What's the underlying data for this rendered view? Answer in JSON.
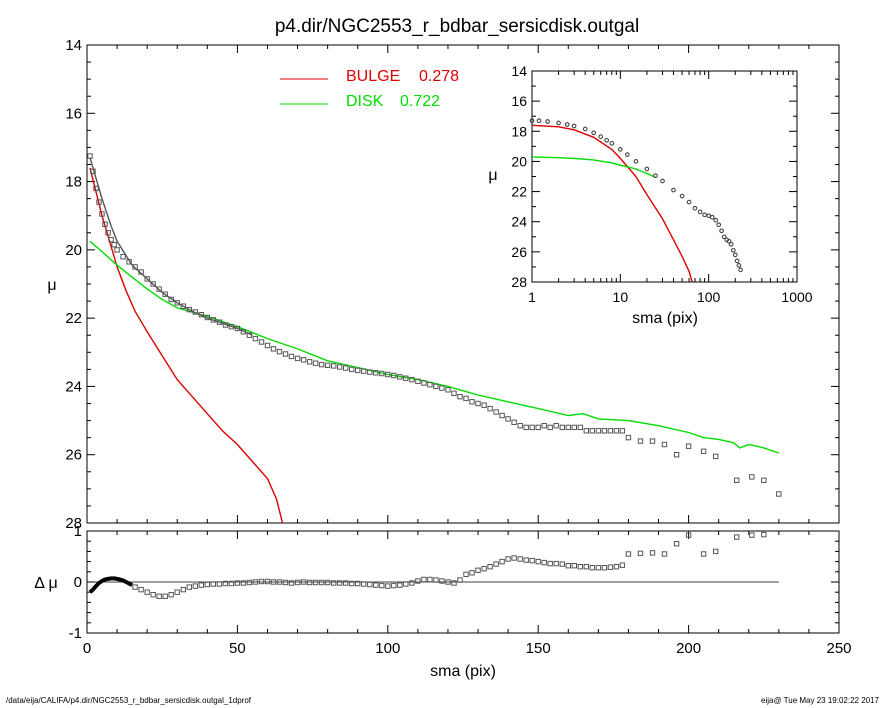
{
  "footer": {
    "left": "/data/eija/CALIFA/p4.dir/NGC2553_r_bdbar_sersicdisk.outgal_1dprof",
    "right": "eija@  Tue May 23 19:02:22 2017"
  },
  "colors": {
    "bulge": "#dd0000",
    "disk": "#00dd00",
    "data": "#555555"
  },
  "chart_data": [
    {
      "id": "main-profile",
      "type": "scatter",
      "title": "p4.dir/NGC2553_r_bdbar_sersicdisk.outgal",
      "xlabel": "",
      "ylabel": "μ",
      "xlim": [
        0,
        250
      ],
      "ylim": [
        28,
        14
      ],
      "y_inverted": true,
      "xticks": [
        0,
        50,
        100,
        150,
        200,
        250
      ],
      "yticks": [
        14,
        16,
        18,
        20,
        22,
        24,
        26,
        28
      ],
      "legend": {
        "placement": "top-center",
        "entries": [
          {
            "name": "BULGE",
            "value": "0.278",
            "color": "#dd0000"
          },
          {
            "name": "DISK",
            "value": "0.722",
            "color": "#00dd00"
          }
        ]
      },
      "series": [
        {
          "name": "BULGE",
          "style": "line",
          "color": "#dd0000",
          "x": [
            1,
            3,
            5,
            8,
            10,
            13,
            16,
            20,
            25,
            30,
            35,
            40,
            45,
            50,
            55,
            60,
            63,
            65
          ],
          "y": [
            17.6,
            18.3,
            19.0,
            19.9,
            20.5,
            21.2,
            21.8,
            22.4,
            23.1,
            23.8,
            24.3,
            24.8,
            25.3,
            25.7,
            26.2,
            26.7,
            27.3,
            28.0
          ]
        },
        {
          "name": "DISK",
          "style": "line",
          "color": "#00dd00",
          "x": [
            1,
            5,
            10,
            15,
            20,
            25,
            30,
            40,
            50,
            60,
            70,
            80,
            90,
            100,
            110,
            120,
            130,
            140,
            150,
            155,
            160,
            165,
            170,
            180,
            190,
            200,
            205,
            210,
            215,
            217,
            220,
            225,
            230
          ],
          "y": [
            19.75,
            20.05,
            20.45,
            20.8,
            21.15,
            21.45,
            21.7,
            21.95,
            22.25,
            22.6,
            22.9,
            23.25,
            23.45,
            23.65,
            23.8,
            24.0,
            24.25,
            24.45,
            24.65,
            24.75,
            24.85,
            24.8,
            24.95,
            25.0,
            25.15,
            25.35,
            25.5,
            25.55,
            25.65,
            25.8,
            25.7,
            25.8,
            25.95
          ]
        },
        {
          "name": "total model",
          "style": "line",
          "color": "#555555",
          "x": [
            1,
            3,
            5,
            8,
            10,
            15,
            20,
            25,
            30,
            35,
            40,
            45,
            50,
            55
          ],
          "y": [
            17.3,
            17.9,
            18.5,
            19.3,
            19.75,
            20.45,
            20.85,
            21.25,
            21.55,
            21.8,
            22.0,
            22.15,
            22.3,
            22.5
          ]
        },
        {
          "name": "data",
          "style": "points",
          "color": "#555555",
          "x": [
            1,
            2,
            3,
            4,
            5,
            6,
            7,
            8,
            9,
            10,
            12,
            14,
            16,
            18,
            20,
            22,
            24,
            26,
            28,
            30,
            32,
            34,
            36,
            38,
            40,
            42,
            44,
            46,
            48,
            50,
            52,
            54,
            56,
            58,
            60,
            62,
            64,
            66,
            68,
            70,
            72,
            74,
            76,
            78,
            80,
            82,
            84,
            86,
            88,
            90,
            92,
            94,
            96,
            98,
            100,
            102,
            104,
            106,
            108,
            110,
            112,
            114,
            116,
            118,
            120,
            122,
            124,
            126,
            128,
            130,
            132,
            134,
            136,
            138,
            140,
            142,
            144,
            146,
            148,
            150,
            152,
            154,
            156,
            158,
            160,
            162,
            164,
            166,
            168,
            170,
            172,
            174,
            176,
            178,
            180,
            184,
            188,
            192,
            196,
            200,
            205,
            209,
            216,
            221,
            225,
            230
          ],
          "y": [
            17.25,
            17.7,
            18.2,
            18.6,
            18.95,
            19.25,
            19.5,
            19.7,
            19.85,
            20.0,
            20.2,
            20.35,
            20.5,
            20.65,
            20.85,
            21.0,
            21.15,
            21.3,
            21.45,
            21.55,
            21.65,
            21.75,
            21.82,
            21.9,
            21.98,
            22.05,
            22.12,
            22.2,
            22.25,
            22.3,
            22.4,
            22.5,
            22.6,
            22.7,
            22.8,
            22.9,
            22.98,
            23.05,
            23.12,
            23.18,
            23.22,
            23.28,
            23.32,
            23.36,
            23.38,
            23.4,
            23.43,
            23.46,
            23.5,
            23.53,
            23.55,
            23.58,
            23.6,
            23.62,
            23.65,
            23.68,
            23.72,
            23.76,
            23.8,
            23.85,
            23.9,
            23.95,
            24.0,
            24.05,
            24.1,
            24.2,
            24.3,
            24.35,
            24.45,
            24.5,
            24.55,
            24.65,
            24.75,
            24.85,
            24.95,
            25.05,
            25.15,
            25.2,
            25.2,
            25.2,
            25.15,
            25.2,
            25.15,
            25.2,
            25.2,
            25.2,
            25.2,
            25.3,
            25.3,
            25.3,
            25.3,
            25.3,
            25.3,
            25.3,
            25.5,
            25.6,
            25.6,
            25.7,
            26.0,
            25.75,
            25.9,
            26.05,
            26.75,
            26.65,
            26.75,
            27.15
          ]
        }
      ]
    },
    {
      "id": "residual",
      "type": "scatter",
      "xlabel": "sma (pix)",
      "ylabel": "Δ μ",
      "xlim": [
        0,
        250
      ],
      "ylim": [
        -1,
        1
      ],
      "xticks": [
        0,
        50,
        100,
        150,
        200,
        250
      ],
      "yticks": [
        -1,
        0,
        1
      ],
      "zero_line": true,
      "series": [
        {
          "name": "residual curve",
          "style": "thick-line",
          "color": "#000000",
          "x": [
            1,
            2,
            3,
            4,
            5,
            6,
            7,
            8,
            9,
            10,
            11,
            12,
            13,
            14,
            15
          ],
          "y": [
            -0.2,
            -0.15,
            -0.08,
            -0.02,
            0.02,
            0.05,
            0.06,
            0.07,
            0.07,
            0.06,
            0.05,
            0.03,
            0.0,
            -0.03,
            -0.06
          ]
        },
        {
          "name": "residuals",
          "style": "points",
          "color": "#555555",
          "x": [
            16,
            18,
            20,
            22,
            24,
            26,
            28,
            30,
            32,
            34,
            36,
            38,
            40,
            42,
            44,
            46,
            48,
            50,
            52,
            54,
            56,
            58,
            60,
            62,
            64,
            66,
            68,
            70,
            72,
            74,
            76,
            78,
            80,
            82,
            84,
            86,
            88,
            90,
            92,
            94,
            96,
            98,
            100,
            102,
            104,
            106,
            108,
            110,
            112,
            114,
            116,
            118,
            120,
            122,
            124,
            126,
            128,
            130,
            132,
            134,
            136,
            138,
            140,
            142,
            144,
            146,
            148,
            150,
            152,
            154,
            156,
            158,
            160,
            162,
            164,
            166,
            168,
            170,
            172,
            174,
            176,
            178,
            180,
            184,
            188,
            192,
            196,
            200,
            205,
            209,
            216,
            221,
            225
          ],
          "y": [
            -0.1,
            -0.15,
            -0.2,
            -0.25,
            -0.28,
            -0.28,
            -0.25,
            -0.2,
            -0.15,
            -0.1,
            -0.08,
            -0.06,
            -0.05,
            -0.04,
            -0.04,
            -0.03,
            -0.03,
            -0.02,
            -0.02,
            -0.01,
            0.0,
            0.01,
            0.01,
            0.0,
            0.0,
            -0.01,
            -0.02,
            -0.01,
            0.0,
            -0.01,
            -0.01,
            -0.01,
            -0.01,
            -0.02,
            -0.02,
            -0.02,
            -0.03,
            -0.03,
            -0.04,
            -0.05,
            -0.06,
            -0.07,
            -0.08,
            -0.07,
            -0.06,
            -0.04,
            -0.02,
            0.02,
            0.05,
            0.05,
            0.04,
            0.02,
            0.0,
            -0.02,
            0.04,
            0.15,
            0.18,
            0.23,
            0.26,
            0.3,
            0.35,
            0.4,
            0.45,
            0.47,
            0.45,
            0.43,
            0.42,
            0.4,
            0.38,
            0.36,
            0.36,
            0.35,
            0.32,
            0.32,
            0.3,
            0.3,
            0.28,
            0.28,
            0.28,
            0.29,
            0.3,
            0.33,
            0.55,
            0.56,
            0.57,
            0.55,
            0.75,
            0.92,
            0.55,
            0.6,
            0.88,
            0.92,
            0.93
          ]
        }
      ]
    },
    {
      "id": "inset-log-profile",
      "type": "line",
      "xlabel": "sma (pix)",
      "ylabel": "μ",
      "xscale": "log",
      "xlim": [
        1,
        1000
      ],
      "ylim": [
        28,
        14
      ],
      "xticks": [
        1,
        10,
        100,
        1000
      ],
      "yticks": [
        14,
        16,
        18,
        20,
        22,
        24,
        26,
        28
      ],
      "series": [
        {
          "name": "BULGE",
          "style": "line",
          "color": "#dd0000",
          "x": [
            1,
            2,
            3,
            5,
            8,
            10,
            15,
            20,
            30,
            40,
            50,
            60,
            65
          ],
          "y": [
            17.6,
            17.7,
            17.9,
            18.4,
            19.2,
            19.8,
            21.0,
            22.2,
            23.8,
            25.2,
            26.3,
            27.3,
            28.0
          ]
        },
        {
          "name": "DISK",
          "style": "line",
          "color": "#00dd00",
          "x": [
            1,
            2,
            3,
            5,
            8,
            10,
            15,
            20,
            25
          ],
          "y": [
            19.7,
            19.75,
            19.8,
            19.9,
            20.1,
            20.25,
            20.5,
            20.8,
            21.05
          ]
        },
        {
          "name": "data",
          "style": "points",
          "color": "#444444",
          "x": [
            1,
            1.2,
            1.5,
            2,
            2.5,
            3,
            4,
            5,
            6,
            7,
            8,
            10,
            12,
            15,
            20,
            25,
            30,
            40,
            50,
            60,
            70,
            80,
            90,
            100,
            110,
            120,
            130,
            140,
            150,
            160,
            170,
            180,
            190,
            200,
            210,
            220,
            230
          ],
          "y": [
            17.3,
            17.3,
            17.35,
            17.45,
            17.55,
            17.65,
            17.85,
            18.1,
            18.35,
            18.6,
            18.8,
            19.2,
            19.55,
            20.0,
            20.5,
            20.95,
            21.3,
            21.9,
            22.3,
            22.7,
            23.1,
            23.35,
            23.55,
            23.6,
            23.7,
            23.9,
            24.2,
            24.6,
            25.0,
            25.2,
            25.3,
            25.5,
            25.9,
            26.2,
            26.6,
            26.9,
            27.2
          ]
        }
      ]
    }
  ]
}
